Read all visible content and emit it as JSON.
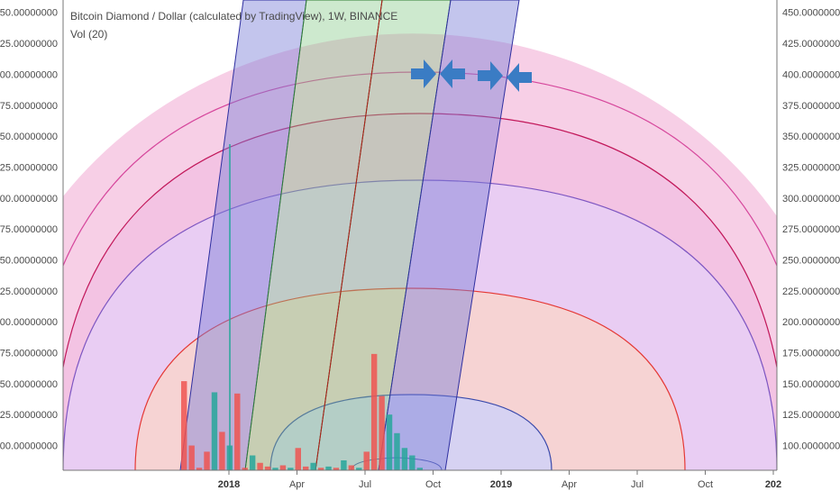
{
  "header": {
    "title": "Bitcoin Diamond / Dollar (calculated by TradingView), 1W, BINANCE",
    "indicator": "Vol (20)"
  },
  "axis": {
    "y_ticks": [
      "450.00000000",
      "425.00000000",
      "400.00000000",
      "375.00000000",
      "350.00000000",
      "325.00000000",
      "300.00000000",
      "275.00000000",
      "250.00000000",
      "225.00000000",
      "200.00000000",
      "175.00000000",
      "150.00000000",
      "125.00000000",
      "100.00000000"
    ],
    "x_ticks": [
      "2018",
      "Apr",
      "Jul",
      "Oct",
      "2019",
      "Apr",
      "Jul",
      "Oct",
      "202"
    ]
  },
  "chart_data": {
    "type": "bar",
    "title": "Bitcoin Diamond / Dollar (calculated by TradingView), 1W, BINANCE",
    "ylim": [
      80,
      460
    ],
    "y_ticks": [
      450,
      425,
      400,
      375,
      350,
      325,
      300,
      275,
      250,
      225,
      200,
      175,
      150,
      125,
      100
    ],
    "x_ticks": [
      "2018",
      "Apr",
      "Jul",
      "Oct",
      "2019",
      "Apr",
      "Jul",
      "Oct",
      "202"
    ],
    "grid": true,
    "series": [
      {
        "name": "Vol (20)",
        "values": [
          152,
          100,
          82,
          95,
          143,
          111,
          100,
          142,
          82,
          92,
          86,
          83,
          82,
          84,
          82,
          98,
          83,
          86,
          82,
          83,
          82,
          88,
          84,
          82,
          95,
          174,
          140,
          125,
          110,
          98,
          92,
          82
        ]
      }
    ],
    "bar_colors": [
      "#ef5350",
      "#ef5350",
      "#ef5350",
      "#ef5350",
      "#26a69a",
      "#ef5350",
      "#26a69a",
      "#ef5350",
      "#ef5350",
      "#26a69a",
      "#ef5350",
      "#ef5350",
      "#26a69a",
      "#ef5350",
      "#26a69a",
      "#ef5350",
      "#ef5350",
      "#26a69a",
      "#ef5350",
      "#26a69a",
      "#ef5350",
      "#26a69a",
      "#ef5350",
      "#26a69a",
      "#ef5350",
      "#ef5350",
      "#ef5350",
      "#26a69a",
      "#26a69a",
      "#26a69a",
      "#26a69a",
      "#26a69a"
    ],
    "annotations": [
      "blue arrows pointing right",
      "blue arrows pointing left"
    ]
  },
  "colors": {
    "arc_pink": "#d6479c",
    "arc_red": "#c2185b",
    "arc_purple": "#7e57c2",
    "arc_orange": "#e53935",
    "arc_blue": "#3949ab",
    "band_blue": "#7b7fd6",
    "band_green": "#81c784",
    "arrow": "#3a7cc4"
  }
}
